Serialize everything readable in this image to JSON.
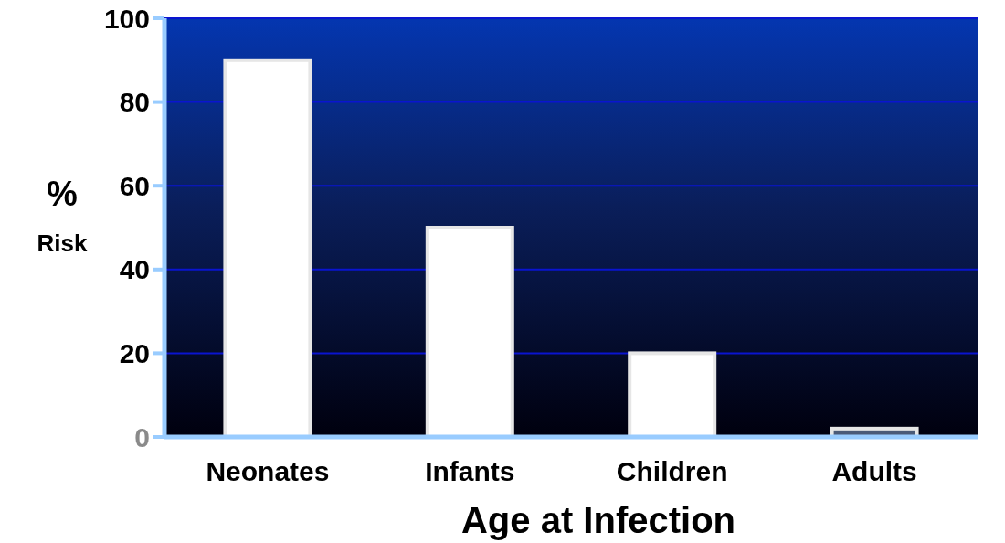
{
  "chart_data": {
    "type": "bar",
    "categories": [
      "Neonates",
      "Infants",
      "Children",
      "Adults"
    ],
    "values": [
      90,
      50,
      20,
      2
    ],
    "colors": [
      "#ffffff",
      "#ffffff",
      "#ffffff",
      "#4a5a78"
    ],
    "xlabel": "Age at Infection",
    "ylabel": "%\nRisk",
    "ylim": [
      0,
      100
    ],
    "yticks": [
      0,
      20,
      40,
      60,
      80,
      100
    ],
    "grid": "y"
  }
}
